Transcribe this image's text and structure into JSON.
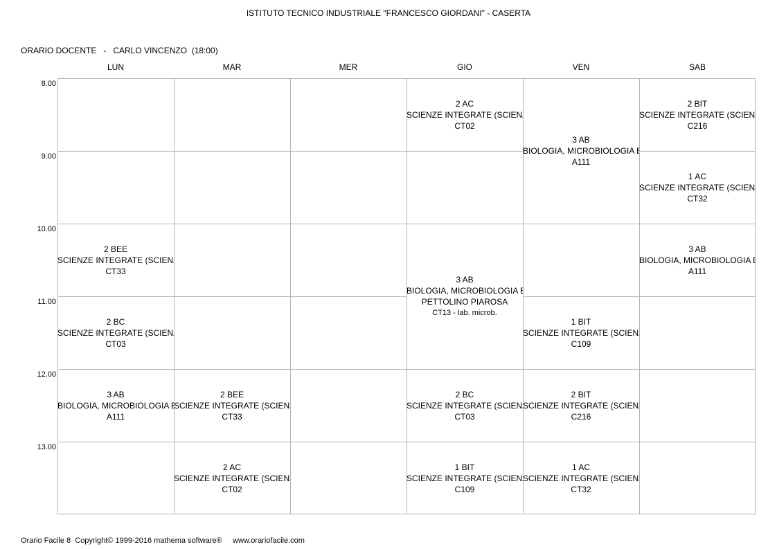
{
  "school_title": "ISTITUTO TECNICO INDUSTRIALE \"FRANCESCO GIORDANI\" - CASERTA",
  "teacher_line": "ORARIO DOCENTE   -   CARLO VINCENZO  (18:00)",
  "days": [
    "LUN",
    "MAR",
    "MER",
    "GIO",
    "VEN",
    "SAB"
  ],
  "times": [
    "8.00",
    "9.00",
    "10.00",
    "11.00",
    "12.00",
    "13.00"
  ],
  "lessons": [
    {
      "day": 0,
      "start": 2,
      "span": 1,
      "cls": "2 BEE",
      "subject": "SCIENZE INTEGRATE (SCIENZE",
      "teacher": "",
      "room": "CT33"
    },
    {
      "day": 0,
      "start": 3,
      "span": 1,
      "cls": "2 BC",
      "subject": "SCIENZE INTEGRATE (SCIENZE",
      "teacher": "",
      "room": "CT03"
    },
    {
      "day": 0,
      "start": 4,
      "span": 1,
      "cls": "3 AB",
      "subject": "BIOLOGIA, MICROBIOLOGIA E T",
      "teacher": "",
      "room": "A111"
    },
    {
      "day": 1,
      "start": 4,
      "span": 1,
      "cls": "2 BEE",
      "subject": "SCIENZE INTEGRATE (SCIENZE",
      "teacher": "",
      "room": "CT33"
    },
    {
      "day": 1,
      "start": 5,
      "span": 1,
      "cls": "2 AC",
      "subject": "SCIENZE INTEGRATE (SCIENZE",
      "teacher": "",
      "room": "CT02"
    },
    {
      "day": 3,
      "start": 0,
      "span": 1,
      "cls": "2 AC",
      "subject": "SCIENZE INTEGRATE (SCIENZE",
      "teacher": "",
      "room": "CT02"
    },
    {
      "day": 3,
      "start": 2,
      "span": 2,
      "cls": "3 AB",
      "subject": "BIOLOGIA, MICROBIOLOGIA E T",
      "teacher": "PETTOLINO PIAROSA",
      "room": "CT13 - lab. microb."
    },
    {
      "day": 3,
      "start": 4,
      "span": 1,
      "cls": "2 BC",
      "subject": "SCIENZE INTEGRATE (SCIENZE",
      "teacher": "",
      "room": "CT03"
    },
    {
      "day": 3,
      "start": 5,
      "span": 1,
      "cls": "1 BIT",
      "subject": "SCIENZE INTEGRATE (SCIENZE",
      "teacher": "",
      "room": "C109"
    },
    {
      "day": 4,
      "start": 0,
      "span": 2,
      "cls": "3 AB",
      "subject": "BIOLOGIA, MICROBIOLOGIA E T",
      "teacher": "",
      "room": "A111"
    },
    {
      "day": 4,
      "start": 3,
      "span": 1,
      "cls": "1 BIT",
      "subject": "SCIENZE INTEGRATE (SCIENZE",
      "teacher": "",
      "room": "C109"
    },
    {
      "day": 4,
      "start": 4,
      "span": 1,
      "cls": "2 BIT",
      "subject": "SCIENZE INTEGRATE (SCIENZE",
      "teacher": "",
      "room": "C216"
    },
    {
      "day": 4,
      "start": 5,
      "span": 1,
      "cls": "1 AC",
      "subject": "SCIENZE INTEGRATE (SCIENZE",
      "teacher": "",
      "room": "CT32"
    },
    {
      "day": 5,
      "start": 0,
      "span": 1,
      "cls": "2 BIT",
      "subject": "SCIENZE INTEGRATE (SCIENZE",
      "teacher": "",
      "room": "C216"
    },
    {
      "day": 5,
      "start": 1,
      "span": 1,
      "cls": "1 AC",
      "subject": "SCIENZE INTEGRATE (SCIENZE",
      "teacher": "",
      "room": "CT32"
    },
    {
      "day": 5,
      "start": 2,
      "span": 1,
      "cls": "3 AB",
      "subject": "BIOLOGIA, MICROBIOLOGIA E T",
      "teacher": "",
      "room": "A111"
    }
  ],
  "footer": "Orario Facile 8  Copyright© 1999-2016 mathema software®     www.orariofacile.com"
}
